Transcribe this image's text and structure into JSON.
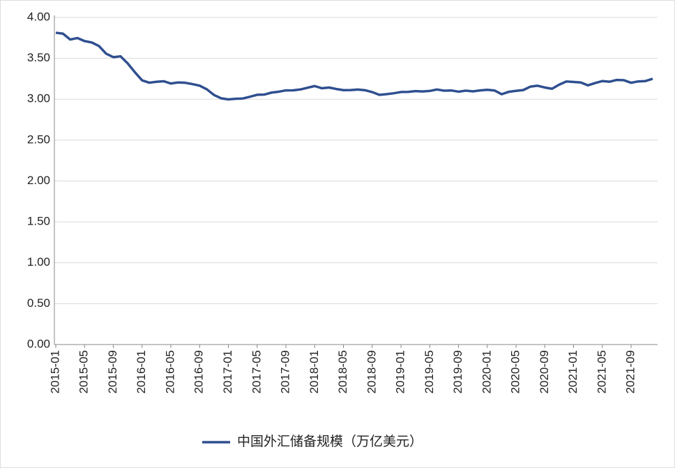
{
  "chart_data": {
    "type": "line",
    "categories": [
      "2015-01",
      null,
      null,
      null,
      "2015-05",
      null,
      null,
      null,
      "2015-09",
      null,
      null,
      null,
      "2016-01",
      null,
      null,
      null,
      "2016-05",
      null,
      null,
      null,
      "2016-09",
      null,
      null,
      null,
      "2017-01",
      null,
      null,
      null,
      "2017-05",
      null,
      null,
      null,
      "2017-09",
      null,
      null,
      null,
      "2018-01",
      null,
      null,
      null,
      "2018-05",
      null,
      null,
      null,
      "2018-09",
      null,
      null,
      null,
      "2019-01",
      null,
      null,
      null,
      "2019-05",
      null,
      null,
      null,
      "2019-09",
      null,
      null,
      null,
      "2020-01",
      null,
      null,
      null,
      "2020-05",
      null,
      null,
      null,
      "2020-09",
      null,
      null,
      null,
      "2021-01",
      null,
      null,
      null,
      "2021-05",
      null,
      null,
      null,
      "2021-09",
      null,
      null,
      null
    ],
    "series": [
      {
        "name": "中国外汇储备规模（万亿美元）",
        "color": "#2f4f8f",
        "values": [
          3.813,
          3.802,
          3.73,
          3.748,
          3.711,
          3.694,
          3.651,
          3.557,
          3.514,
          3.525,
          3.438,
          3.33,
          3.231,
          3.202,
          3.213,
          3.22,
          3.192,
          3.205,
          3.201,
          3.185,
          3.166,
          3.121,
          3.052,
          3.011,
          2.998,
          3.005,
          3.009,
          3.03,
          3.054,
          3.057,
          3.081,
          3.092,
          3.108,
          3.109,
          3.119,
          3.14,
          3.161,
          3.134,
          3.143,
          3.125,
          3.111,
          3.112,
          3.118,
          3.11,
          3.087,
          3.053,
          3.062,
          3.073,
          3.088,
          3.09,
          3.099,
          3.095,
          3.101,
          3.119,
          3.104,
          3.107,
          3.092,
          3.105,
          3.096,
          3.108,
          3.115,
          3.107,
          3.061,
          3.091,
          3.102,
          3.112,
          3.154,
          3.165,
          3.143,
          3.128,
          3.178,
          3.217,
          3.211,
          3.205,
          3.17,
          3.198,
          3.222,
          3.214,
          3.236,
          3.232,
          3.201,
          3.218,
          3.222,
          3.25
        ]
      }
    ],
    "ylim": [
      0,
      4
    ],
    "yticks": [
      {
        "value": 0,
        "label": "0.00"
      },
      {
        "value": 0.5,
        "label": "0.50"
      },
      {
        "value": 1,
        "label": "1.00"
      },
      {
        "value": 1.5,
        "label": "1.50"
      },
      {
        "value": 2,
        "label": "2.00"
      },
      {
        "value": 2.5,
        "label": "2.50"
      },
      {
        "value": 3,
        "label": "3.00"
      },
      {
        "value": 3.5,
        "label": "3.50"
      },
      {
        "value": 4,
        "label": "4.00"
      }
    ],
    "grid": true,
    "legend": "bottom"
  }
}
